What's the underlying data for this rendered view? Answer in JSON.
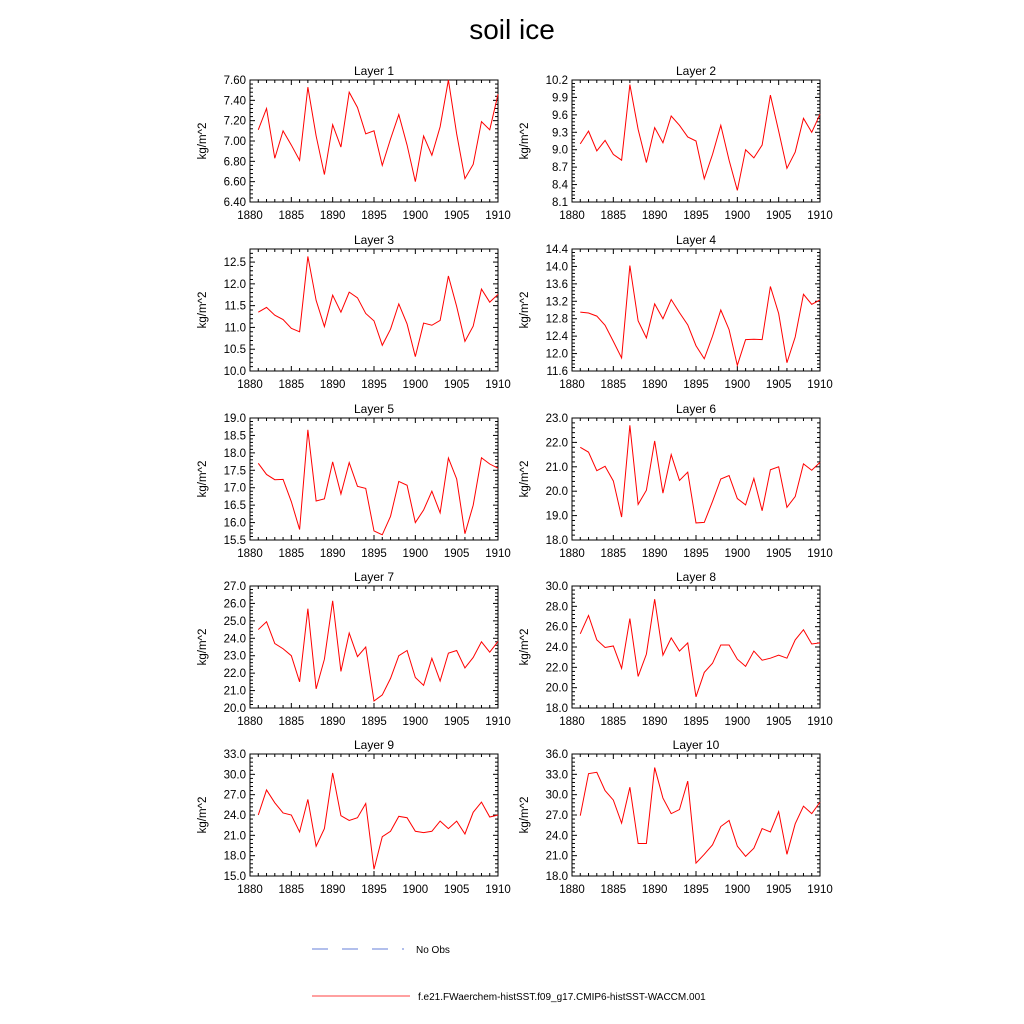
{
  "title": "soil ice",
  "legend": [
    {
      "label": "No Obs",
      "color": "#3355cc",
      "style": "dashed"
    },
    {
      "label": "f.e21.FWaerchem-histSST.f09_g17.CMIP6-histSST-WACCM.001",
      "color": "#ff0000",
      "style": "solid"
    }
  ],
  "line_color": "#ff0000",
  "chart_data": [
    {
      "type": "line",
      "title": "Layer 1",
      "ylabel": "kg/m^2",
      "xlim": [
        1880,
        1910
      ],
      "ylim": [
        6.4,
        7.6
      ],
      "xticks": [
        1880,
        1885,
        1890,
        1895,
        1900,
        1905,
        1910
      ],
      "yticks": [
        "6.40",
        "6.60",
        "6.80",
        "7.00",
        "7.20",
        "7.40",
        "7.60"
      ],
      "x": [
        1881,
        1882,
        1883,
        1884,
        1885,
        1886,
        1887,
        1888,
        1889,
        1890,
        1891,
        1892,
        1893,
        1894,
        1895,
        1896,
        1897,
        1898,
        1899,
        1900,
        1901,
        1902,
        1903,
        1904,
        1905,
        1906,
        1907,
        1908,
        1909,
        1910
      ],
      "values": [
        7.11,
        7.32,
        6.83,
        7.1,
        6.96,
        6.81,
        7.53,
        7.05,
        6.67,
        7.16,
        6.94,
        7.48,
        7.33,
        7.07,
        7.1,
        6.76,
        7.02,
        7.26,
        6.96,
        6.6,
        7.05,
        6.86,
        7.14,
        7.6,
        7.07,
        6.63,
        6.77,
        7.19,
        7.11,
        7.46
      ]
    },
    {
      "type": "line",
      "title": "Layer 2",
      "ylabel": "kg/m^2",
      "xlim": [
        1880,
        1910
      ],
      "ylim": [
        8.1,
        10.2
      ],
      "xticks": [
        1880,
        1885,
        1890,
        1895,
        1900,
        1905,
        1910
      ],
      "yticks": [
        "8.1",
        "8.4",
        "8.7",
        "9.0",
        "9.3",
        "9.6",
        "9.9",
        "10.2"
      ],
      "x": [
        1881,
        1882,
        1883,
        1884,
        1885,
        1886,
        1887,
        1888,
        1889,
        1890,
        1891,
        1892,
        1893,
        1894,
        1895,
        1896,
        1897,
        1898,
        1899,
        1900,
        1901,
        1902,
        1903,
        1904,
        1905,
        1906,
        1907,
        1908,
        1909,
        1910
      ],
      "values": [
        9.1,
        9.32,
        8.98,
        9.16,
        8.92,
        8.82,
        10.12,
        9.35,
        8.78,
        9.38,
        9.12,
        9.58,
        9.42,
        9.22,
        9.15,
        8.5,
        8.92,
        9.42,
        8.82,
        8.3,
        9.0,
        8.86,
        9.08,
        9.94,
        9.32,
        8.68,
        8.96,
        9.54,
        9.3,
        9.61
      ]
    },
    {
      "type": "line",
      "title": "Layer 3",
      "ylabel": "kg/m^2",
      "xlim": [
        1880,
        1910
      ],
      "ylim": [
        10.0,
        12.8
      ],
      "xticks": [
        1880,
        1885,
        1890,
        1895,
        1900,
        1905,
        1910
      ],
      "yticks": [
        "10.0",
        "10.5",
        "11.0",
        "11.5",
        "12.0",
        "12.5"
      ],
      "x": [
        1881,
        1882,
        1883,
        1884,
        1885,
        1886,
        1887,
        1888,
        1889,
        1890,
        1891,
        1892,
        1893,
        1894,
        1895,
        1896,
        1897,
        1898,
        1899,
        1900,
        1901,
        1902,
        1903,
        1904,
        1905,
        1906,
        1907,
        1908,
        1909,
        1910
      ],
      "values": [
        11.35,
        11.46,
        11.28,
        11.18,
        10.98,
        10.9,
        12.63,
        11.62,
        11.02,
        11.74,
        11.35,
        11.81,
        11.68,
        11.32,
        11.15,
        10.59,
        10.96,
        11.54,
        11.08,
        10.33,
        11.1,
        11.05,
        11.16,
        12.18,
        11.48,
        10.68,
        11.03,
        11.88,
        11.58,
        11.76
      ]
    },
    {
      "type": "line",
      "title": "Layer 4",
      "ylabel": "kg/m^2",
      "xlim": [
        1880,
        1910
      ],
      "ylim": [
        11.6,
        14.4
      ],
      "xticks": [
        1880,
        1885,
        1890,
        1895,
        1900,
        1905,
        1910
      ],
      "yticks": [
        "11.6",
        "12.0",
        "12.4",
        "12.8",
        "13.2",
        "13.6",
        "14.0",
        "14.4"
      ],
      "x": [
        1881,
        1882,
        1883,
        1884,
        1885,
        1886,
        1887,
        1888,
        1889,
        1890,
        1891,
        1892,
        1893,
        1894,
        1895,
        1896,
        1897,
        1898,
        1899,
        1900,
        1901,
        1902,
        1903,
        1904,
        1905,
        1906,
        1907,
        1908,
        1909,
        1910
      ],
      "values": [
        12.95,
        12.93,
        12.86,
        12.65,
        12.28,
        11.9,
        14.02,
        12.75,
        12.36,
        13.14,
        12.8,
        13.24,
        12.94,
        12.66,
        12.18,
        11.88,
        12.4,
        13.0,
        12.55,
        11.73,
        12.32,
        12.33,
        12.32,
        13.54,
        12.92,
        11.79,
        12.38,
        13.36,
        13.13,
        13.23
      ]
    },
    {
      "type": "line",
      "title": "Layer 5",
      "ylabel": "kg/m^2",
      "xlim": [
        1880,
        1910
      ],
      "ylim": [
        15.5,
        19.0
      ],
      "xticks": [
        1880,
        1885,
        1890,
        1895,
        1900,
        1905,
        1910
      ],
      "yticks": [
        "15.5",
        "16.0",
        "16.5",
        "17.0",
        "17.5",
        "18.0",
        "18.5",
        "19.0"
      ],
      "x": [
        1881,
        1882,
        1883,
        1884,
        1885,
        1886,
        1887,
        1888,
        1889,
        1890,
        1891,
        1892,
        1893,
        1894,
        1895,
        1896,
        1897,
        1898,
        1899,
        1900,
        1901,
        1902,
        1903,
        1904,
        1905,
        1906,
        1907,
        1908,
        1909,
        1910
      ],
      "values": [
        17.7,
        17.38,
        17.23,
        17.24,
        16.6,
        15.8,
        18.66,
        16.62,
        16.68,
        17.74,
        16.82,
        17.72,
        17.04,
        16.98,
        15.76,
        15.65,
        16.18,
        17.18,
        17.07,
        16.0,
        16.36,
        16.9,
        16.28,
        17.85,
        17.25,
        15.68,
        16.5,
        17.86,
        17.68,
        17.56
      ]
    },
    {
      "type": "line",
      "title": "Layer 6",
      "ylabel": "kg/m^2",
      "xlim": [
        1880,
        1910
      ],
      "ylim": [
        18.0,
        23.0
      ],
      "xticks": [
        1880,
        1885,
        1890,
        1895,
        1900,
        1905,
        1910
      ],
      "yticks": [
        "18.0",
        "19.0",
        "20.0",
        "21.0",
        "22.0",
        "23.0"
      ],
      "x": [
        1881,
        1882,
        1883,
        1884,
        1885,
        1886,
        1887,
        1888,
        1889,
        1890,
        1891,
        1892,
        1893,
        1894,
        1895,
        1896,
        1897,
        1898,
        1899,
        1900,
        1901,
        1902,
        1903,
        1904,
        1905,
        1906,
        1907,
        1908,
        1909,
        1910
      ],
      "values": [
        21.8,
        21.6,
        20.84,
        21.02,
        20.42,
        18.94,
        22.7,
        19.46,
        20.04,
        22.06,
        19.92,
        21.5,
        20.44,
        20.78,
        18.7,
        18.72,
        19.58,
        20.5,
        20.64,
        19.7,
        19.44,
        20.52,
        19.2,
        20.88,
        21.0,
        19.34,
        19.78,
        21.12,
        20.86,
        21.18
      ]
    },
    {
      "type": "line",
      "title": "Layer 7",
      "ylabel": "kg/m^2",
      "xlim": [
        1880,
        1910
      ],
      "ylim": [
        20.0,
        27.0
      ],
      "xticks": [
        1880,
        1885,
        1890,
        1895,
        1900,
        1905,
        1910
      ],
      "yticks": [
        "20.0",
        "21.0",
        "22.0",
        "23.0",
        "24.0",
        "25.0",
        "26.0",
        "27.0"
      ],
      "x": [
        1881,
        1882,
        1883,
        1884,
        1885,
        1886,
        1887,
        1888,
        1889,
        1890,
        1891,
        1892,
        1893,
        1894,
        1895,
        1896,
        1897,
        1898,
        1899,
        1900,
        1901,
        1902,
        1903,
        1904,
        1905,
        1906,
        1907,
        1908,
        1909,
        1910
      ],
      "values": [
        24.5,
        24.95,
        23.7,
        23.4,
        23.0,
        21.5,
        25.7,
        21.1,
        22.8,
        26.15,
        22.1,
        24.3,
        22.95,
        23.5,
        20.4,
        20.75,
        21.7,
        23.0,
        23.3,
        21.75,
        21.3,
        22.85,
        21.55,
        23.15,
        23.3,
        22.3,
        22.9,
        23.8,
        23.2,
        23.82
      ]
    },
    {
      "type": "line",
      "title": "Layer 8",
      "ylabel": "kg/m^2",
      "xlim": [
        1880,
        1910
      ],
      "ylim": [
        18.0,
        30.0
      ],
      "xticks": [
        1880,
        1885,
        1890,
        1895,
        1900,
        1905,
        1910
      ],
      "yticks": [
        "18.0",
        "20.0",
        "22.0",
        "24.0",
        "26.0",
        "28.0",
        "30.0"
      ],
      "x": [
        1881,
        1882,
        1883,
        1884,
        1885,
        1886,
        1887,
        1888,
        1889,
        1890,
        1891,
        1892,
        1893,
        1894,
        1895,
        1896,
        1897,
        1898,
        1899,
        1900,
        1901,
        1902,
        1903,
        1904,
        1905,
        1906,
        1907,
        1908,
        1909,
        1910
      ],
      "values": [
        25.3,
        27.1,
        24.7,
        23.95,
        24.1,
        21.9,
        26.8,
        21.1,
        23.3,
        28.7,
        23.2,
        24.9,
        23.6,
        24.4,
        19.1,
        21.5,
        22.4,
        24.2,
        24.2,
        22.8,
        22.1,
        23.6,
        22.7,
        22.9,
        23.2,
        22.9,
        24.7,
        25.7,
        24.3,
        24.4
      ]
    },
    {
      "type": "line",
      "title": "Layer 9",
      "ylabel": "kg/m^2",
      "xlim": [
        1880,
        1910
      ],
      "ylim": [
        15.0,
        33.0
      ],
      "xticks": [
        1880,
        1885,
        1890,
        1895,
        1900,
        1905,
        1910
      ],
      "yticks": [
        "15.0",
        "18.0",
        "21.0",
        "24.0",
        "27.0",
        "30.0",
        "33.0"
      ],
      "x": [
        1881,
        1882,
        1883,
        1884,
        1885,
        1886,
        1887,
        1888,
        1889,
        1890,
        1891,
        1892,
        1893,
        1894,
        1895,
        1896,
        1897,
        1898,
        1899,
        1900,
        1901,
        1902,
        1903,
        1904,
        1905,
        1906,
        1907,
        1908,
        1909,
        1910
      ],
      "values": [
        24.0,
        27.7,
        25.8,
        24.3,
        24.0,
        21.5,
        26.3,
        19.4,
        22.0,
        30.2,
        23.9,
        23.2,
        23.6,
        25.7,
        16.0,
        20.8,
        21.6,
        23.8,
        23.6,
        21.6,
        21.4,
        21.6,
        23.1,
        22.0,
        23.1,
        21.2,
        24.4,
        25.9,
        23.7,
        24.0
      ]
    },
    {
      "type": "line",
      "title": "Layer 10",
      "ylabel": "kg/m^2",
      "xlim": [
        1880,
        1910
      ],
      "ylim": [
        18.0,
        36.0
      ],
      "xticks": [
        1880,
        1885,
        1890,
        1895,
        1900,
        1905,
        1910
      ],
      "yticks": [
        "18.0",
        "21.0",
        "24.0",
        "27.0",
        "30.0",
        "33.0",
        "36.0"
      ],
      "x": [
        1881,
        1882,
        1883,
        1884,
        1885,
        1886,
        1887,
        1888,
        1889,
        1890,
        1891,
        1892,
        1893,
        1894,
        1895,
        1896,
        1897,
        1898,
        1899,
        1900,
        1901,
        1902,
        1903,
        1904,
        1905,
        1906,
        1907,
        1908,
        1909,
        1910
      ],
      "values": [
        26.9,
        33.1,
        33.3,
        30.6,
        29.2,
        25.8,
        31.1,
        22.8,
        22.8,
        34.0,
        29.5,
        27.2,
        27.8,
        32.0,
        19.9,
        21.2,
        22.6,
        25.3,
        26.2,
        22.4,
        20.9,
        22.1,
        25.0,
        24.5,
        27.5,
        21.2,
        25.7,
        28.3,
        27.2,
        28.9
      ]
    }
  ]
}
